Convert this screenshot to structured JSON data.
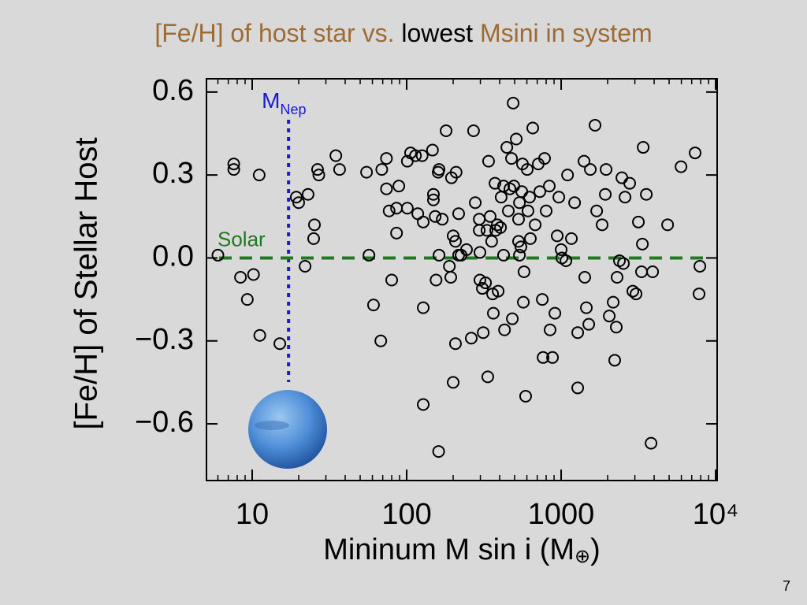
{
  "chart_data": {
    "type": "scatter",
    "title_parts": [
      {
        "text": "[Fe/H] of host star vs. ",
        "color": "#9e6b35"
      },
      {
        "text": "lowest",
        "color": "#000000"
      },
      {
        "text": " Msini in system",
        "color": "#9e6b35"
      }
    ],
    "xlabel": "Mininum M sin i (M",
    "xlabel_sub": "⊕",
    "xlabel_end": ")",
    "ylabel": "[Fe/H] of Stellar Host",
    "page_number": "7",
    "xscale": "log",
    "xlim": [
      5.06,
      10230
    ],
    "ylim": [
      -0.805,
      0.648
    ],
    "xticks": [
      10,
      100,
      1000,
      {
        "value": 10000,
        "label": "10⁴"
      }
    ],
    "xminorticks": [
      6,
      7,
      8,
      9,
      20,
      30,
      40,
      50,
      60,
      70,
      80,
      90,
      200,
      300,
      400,
      500,
      600,
      700,
      800,
      900,
      2000,
      3000,
      4000,
      5000,
      6000,
      7000,
      8000,
      9000
    ],
    "yticks": [
      0.6,
      0.3,
      {
        "value": 0,
        "label": "0.0"
      },
      {
        "value": -0.3,
        "label": "−0.3"
      },
      {
        "value": -0.6,
        "label": "−0.6"
      }
    ],
    "color": "#000000",
    "annotations": [
      {
        "text": "M",
        "subscript": "Nep",
        "x": 17.2,
        "color": "#1a1ad6"
      },
      {
        "text": "Solar",
        "y": 0,
        "color": "#1f7a1f"
      }
    ],
    "x": [
      6.0,
      7.6,
      7.6,
      11.1,
      8.4,
      10.2,
      9.3,
      11.2,
      15.1,
      19.3,
      20.0,
      23.0,
      22.0,
      25.3,
      25,
      26.5,
      27,
      34.8,
      36.8,
      55,
      57,
      61,
      68,
      69,
      74,
      74,
      77,
      80,
      86,
      89,
      86,
      101,
      101,
      106,
      114,
      118,
      126,
      128,
      128,
      128,
      147,
      149,
      149,
      153,
      155,
      160,
      162,
      161,
      162,
      170,
      180,
      189,
      193,
      195,
      200,
      200,
      207,
      207,
      209,
      217,
      217,
      225,
      244,
      262,
      271,
      278,
      295,
      295,
      298,
      298,
      309,
      313,
      324,
      331,
      335,
      339,
      347,
      355,
      360,
      364,
      373,
      377,
      386,
      391,
      405,
      409,
      424,
      424,
      430,
      445,
      455,
      466,
      477,
      483,
      489,
      494,
      512,
      530,
      530,
      537,
      537,
      549,
      556,
      562,
      569,
      575,
      589,
      603,
      610,
      625,
      632,
      655,
      679,
      711,
      728,
      755,
      764,
      781,
      800,
      838,
      848,
      879,
      911,
      943,
      966,
      1000,
      1011,
      1074,
      1100,
      1165,
      1222,
      1280,
      1280,
      1406,
      1422,
      1456,
      1509,
      1545,
      1657,
      1698,
      1842,
      1931,
      1954,
      2048,
      2172,
      2222,
      2275,
      2302,
      2385,
      2472,
      2531,
      2591,
      2778,
      2911,
      3053,
      3162,
      3313,
      3356,
      3397,
      3559,
      3819,
      3909,
      4888,
      5970,
      7366,
      7811,
      7907
    ],
    "values": [
      0.01,
      0.34,
      0.32,
      0.3,
      -0.07,
      -0.06,
      -0.15,
      -0.28,
      -0.31,
      0.22,
      0.2,
      0.23,
      -0.03,
      0.12,
      0.07,
      0.32,
      0.3,
      0.37,
      0.32,
      0.31,
      0.01,
      -0.17,
      -0.3,
      0.32,
      0.36,
      0.25,
      0.17,
      -0.08,
      0.09,
      0.26,
      0.18,
      0.35,
      0.18,
      0.38,
      0.37,
      0.16,
      0.37,
      0.13,
      -0.18,
      -0.53,
      0.39,
      0.23,
      0.21,
      0.15,
      -0.08,
      0.31,
      0.32,
      -0.7,
      0.01,
      0.14,
      0.46,
      -0.03,
      -0.07,
      0.29,
      0.08,
      -0.45,
      -0.31,
      0.06,
      0.31,
      0.16,
      0.01,
      0.01,
      0.03,
      -0.29,
      0.46,
      0.2,
      0.14,
      0.1,
      0.02,
      -0.08,
      -0.11,
      -0.27,
      -0.09,
      0.1,
      -0.43,
      0.35,
      0.15,
      0.06,
      -0.13,
      -0.2,
      0.27,
      0.1,
      0.12,
      -0.12,
      0.11,
      0.22,
      0.26,
      0.01,
      -0.26,
      0.4,
      0.17,
      0.25,
      0.36,
      -0.22,
      0.56,
      0.26,
      0.43,
      0.14,
      0.06,
      0.2,
      0.01,
      0.04,
      0.24,
      0.34,
      -0.16,
      -0.05,
      -0.5,
      0.32,
      0.17,
      0.22,
      0.07,
      0.47,
      0.12,
      0.34,
      0.24,
      -0.15,
      -0.36,
      0.36,
      0.17,
      0.26,
      -0.26,
      -0.36,
      -0.2,
      0.08,
      0.22,
      0.03,
      0,
      -0.01,
      0.3,
      0.07,
      0.2,
      -0.47,
      -0.27,
      0.35,
      -0.07,
      -0.18,
      -0.24,
      0.32,
      0.48,
      0.17,
      0.12,
      0.23,
      0.32,
      -0.21,
      -0.16,
      -0.37,
      -0.25,
      -0.07,
      -0.01,
      0.29,
      -0.02,
      0.22,
      0.27,
      -0.12,
      -0.13,
      0.13,
      -0.05,
      0.05,
      0.4,
      0.23,
      -0.67,
      -0.05,
      0.12,
      0.33,
      0.38,
      -0.13,
      -0.03
    ]
  }
}
